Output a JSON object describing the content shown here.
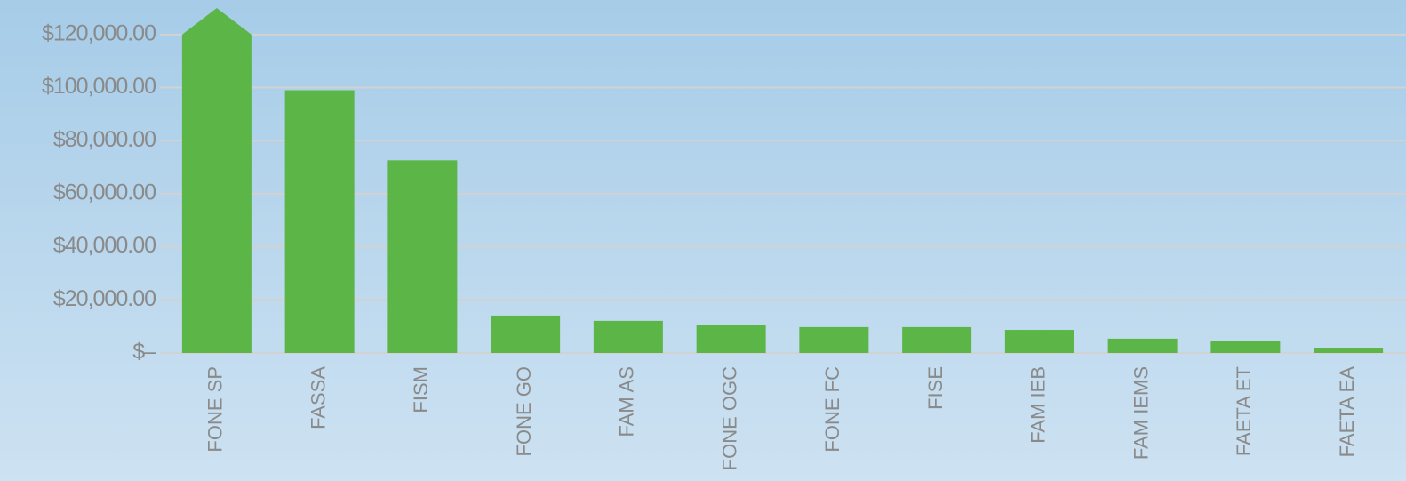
{
  "chart_data": {
    "type": "bar",
    "categories": [
      "FONE SP",
      "FASSA",
      "FISM",
      "FONE GO",
      "FAM AS",
      "FONE OGC",
      "FONE FC",
      "FISE",
      "FAM IEB",
      "FAM IEMS",
      "FAETA ET",
      "FAETA EA"
    ],
    "values": [
      130000,
      99000,
      72600,
      14100,
      12100,
      10400,
      9750,
      9750,
      8700,
      5400,
      4400,
      2000
    ],
    "color": "#5cb547",
    "ylim": [
      0,
      130000
    ],
    "yticks": [
      {
        "value": 0,
        "label": "$–"
      },
      {
        "value": 20000,
        "label": "$20,000.00"
      },
      {
        "value": 40000,
        "label": "$40,000.00"
      },
      {
        "value": 60000,
        "label": "$60,000.00"
      },
      {
        "value": 80000,
        "label": "$80,000.00"
      },
      {
        "value": 100000,
        "label": "$100,000.00"
      },
      {
        "value": 120000,
        "label": "$120,000.00"
      }
    ],
    "grid": true
  }
}
